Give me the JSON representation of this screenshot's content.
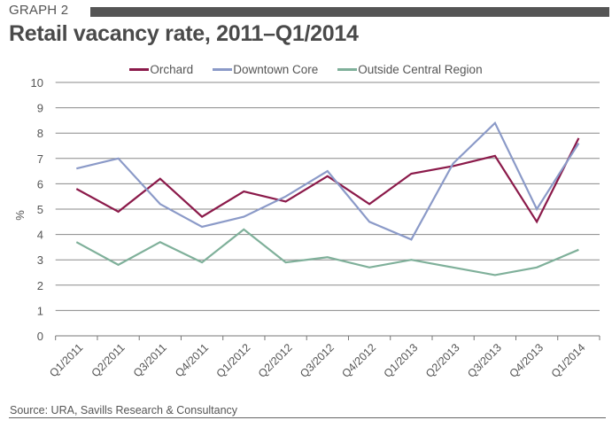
{
  "header": {
    "graph_label": "GRAPH 2",
    "title": "Retail vacancy rate, 2011–Q1/2014"
  },
  "source": "Source: URA, Savills Research & Consultancy",
  "chart_data": {
    "type": "line",
    "title": "Retail vacancy rate, 2011–Q1/2014",
    "xlabel": "",
    "ylabel": "%",
    "ylim": [
      0,
      10
    ],
    "yticks": [
      "0",
      "1",
      "2",
      "3",
      "4",
      "5",
      "6",
      "7",
      "8",
      "9",
      "10"
    ],
    "grid": true,
    "legend_position": "top-center",
    "categories": [
      "Q1/2011",
      "Q2/2011",
      "Q3/2011",
      "Q4/2011",
      "Q1/2012",
      "Q2/2012",
      "Q3/2012",
      "Q4/2012",
      "Q1/2013",
      "Q2/2013",
      "Q3/2013",
      "Q4/2013",
      "Q1/2014"
    ],
    "series": [
      {
        "name": "Orchard",
        "color": "#8b1a4a",
        "values": [
          5.8,
          4.9,
          6.2,
          4.7,
          5.7,
          5.3,
          6.3,
          5.2,
          6.4,
          6.7,
          7.1,
          4.5,
          7.8
        ]
      },
      {
        "name": "Downtown Core",
        "color": "#8b9ac8",
        "values": [
          6.6,
          7.0,
          5.2,
          4.3,
          4.7,
          5.5,
          6.5,
          4.5,
          3.8,
          6.8,
          8.4,
          5.0,
          7.6
        ]
      },
      {
        "name": "Outside Central Region",
        "color": "#7fb09a",
        "values": [
          3.7,
          2.8,
          3.7,
          2.9,
          4.2,
          2.9,
          3.1,
          2.7,
          3.0,
          2.7,
          2.4,
          2.7,
          3.4
        ]
      }
    ]
  }
}
